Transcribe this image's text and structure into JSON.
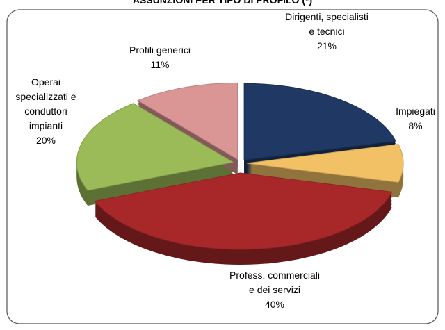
{
  "chart_data": {
    "type": "pie",
    "title": "ASSUNZIONI PER TIPO DI PROFILO (*)",
    "categories": [
      "Dirigenti, specialisti e tecnici",
      "Impiegati",
      "Profess. commerciali e dei servizi",
      "Operai specializzati e conduttori impianti",
      "Profili generici"
    ],
    "values": [
      21,
      8,
      40,
      20,
      11
    ],
    "value_labels": [
      "21%",
      "8%",
      "40%",
      "20%",
      "11%"
    ],
    "colors": [
      "#1f3864",
      "#f2c165",
      "#a8282a",
      "#9bbb59",
      "#d99694"
    ]
  }
}
